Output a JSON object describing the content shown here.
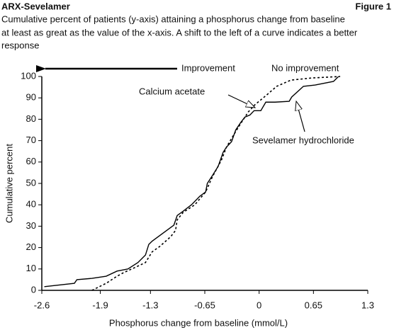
{
  "chart_data": {
    "type": "line",
    "header": "ARX-Sevelamer",
    "figure_label": "Figure 1",
    "subtitle": [
      "Cumulative percent of patients (y-axis) attaining a phosphorus change from baseline",
      "at least as great as the value of the x-axis. A shift to the left of a curve indicates a better",
      "response"
    ],
    "x_label": "Phosphorus change from baseline (mmol/L)",
    "y_label": "Cumulative percent",
    "left_arrow_label": "Improvement",
    "right_arrow_label": "No improvement",
    "xlim": [
      -2.6,
      1.3
    ],
    "xticks": [
      -2.6,
      -1.9,
      -1.3,
      -0.65,
      0,
      0.65,
      1.3
    ],
    "ylim": [
      0,
      100
    ],
    "yticks": [
      0,
      10,
      20,
      30,
      40,
      50,
      60,
      70,
      80,
      90,
      100
    ],
    "series": [
      {
        "name": "Sevelamer hydrochloride",
        "color": "#000000",
        "style": "solid",
        "x": [
          -2.57,
          -2.21,
          -2.18,
          -2.0,
          -1.83,
          -1.7,
          -1.57,
          -1.45,
          -1.36,
          -1.32,
          -1.28,
          -1.02,
          -0.98,
          -0.91,
          -0.81,
          -0.71,
          -0.64,
          -0.62,
          -0.56,
          -0.49,
          -0.43,
          -0.39,
          -0.33,
          -0.28,
          -0.22,
          -0.17,
          -0.11,
          -0.06,
          0.02,
          0.08,
          0.19,
          0.36,
          0.39,
          0.53,
          0.67,
          0.89,
          0.95
        ],
        "values": [
          1.7,
          3.3,
          5,
          5.6,
          6.6,
          9,
          10,
          13,
          16.5,
          21.5,
          23,
          30.5,
          35,
          37,
          40,
          44,
          46,
          50,
          53.6,
          58,
          64.6,
          67,
          69.5,
          75,
          78.5,
          81,
          82,
          84,
          84,
          88,
          88,
          88.4,
          90.4,
          95.4,
          96,
          97.7,
          100
        ]
      },
      {
        "name": "Calcium acetate",
        "color": "#000000",
        "style": "dotted",
        "x": [
          -2.0,
          -1.83,
          -1.7,
          -1.62,
          -1.49,
          -1.36,
          -1.28,
          -1.19,
          -1.06,
          -1.0,
          -0.98,
          -0.91,
          -0.77,
          -0.64,
          -0.56,
          -0.45,
          -0.39,
          -0.3,
          -0.22,
          -0.13,
          -0.05,
          0.08,
          0.21,
          0.38,
          0.63,
          0.97
        ],
        "values": [
          0,
          3.3,
          6.6,
          8.3,
          10.6,
          13,
          18,
          20.5,
          25,
          28,
          33,
          36.4,
          40,
          46,
          53,
          61,
          67,
          73,
          78,
          83.4,
          86.8,
          91,
          95.4,
          98.3,
          99.3,
          100
        ]
      }
    ]
  }
}
